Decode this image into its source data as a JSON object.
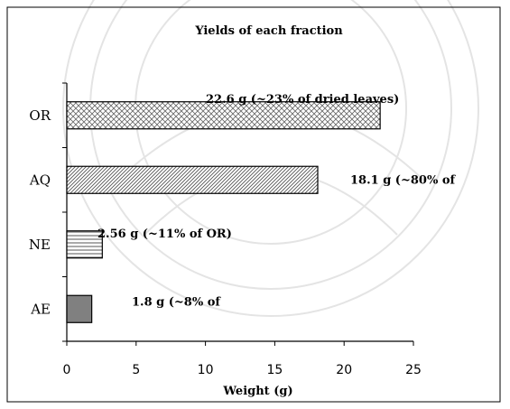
{
  "chart_data": {
    "type": "bar",
    "orientation": "horizontal",
    "title": "Yields of each fraction",
    "xlabel": "Weight (g)",
    "ylabel": "",
    "categories": [
      "OR",
      "AQ",
      "NE",
      "AE"
    ],
    "values": [
      22.6,
      18.1,
      2.56,
      1.8
    ],
    "data_labels": [
      "22.6 g  (~23% of dried leaves)",
      "18.1 g  (~80% of",
      "2.56 g (~11% of OR)",
      "1.8 g  (~8% of"
    ],
    "xlim": [
      0,
      25
    ],
    "xticks": [
      0,
      5,
      10,
      15,
      20,
      25
    ],
    "grid": false,
    "legend": "none",
    "patterns": [
      "crosshatch",
      "diagonal",
      "horizontal-lines",
      "solid-gray"
    ],
    "colors": {
      "bar_stroke": "#000000",
      "solid_fill": "#808080",
      "pattern_stroke": "#555555"
    }
  }
}
